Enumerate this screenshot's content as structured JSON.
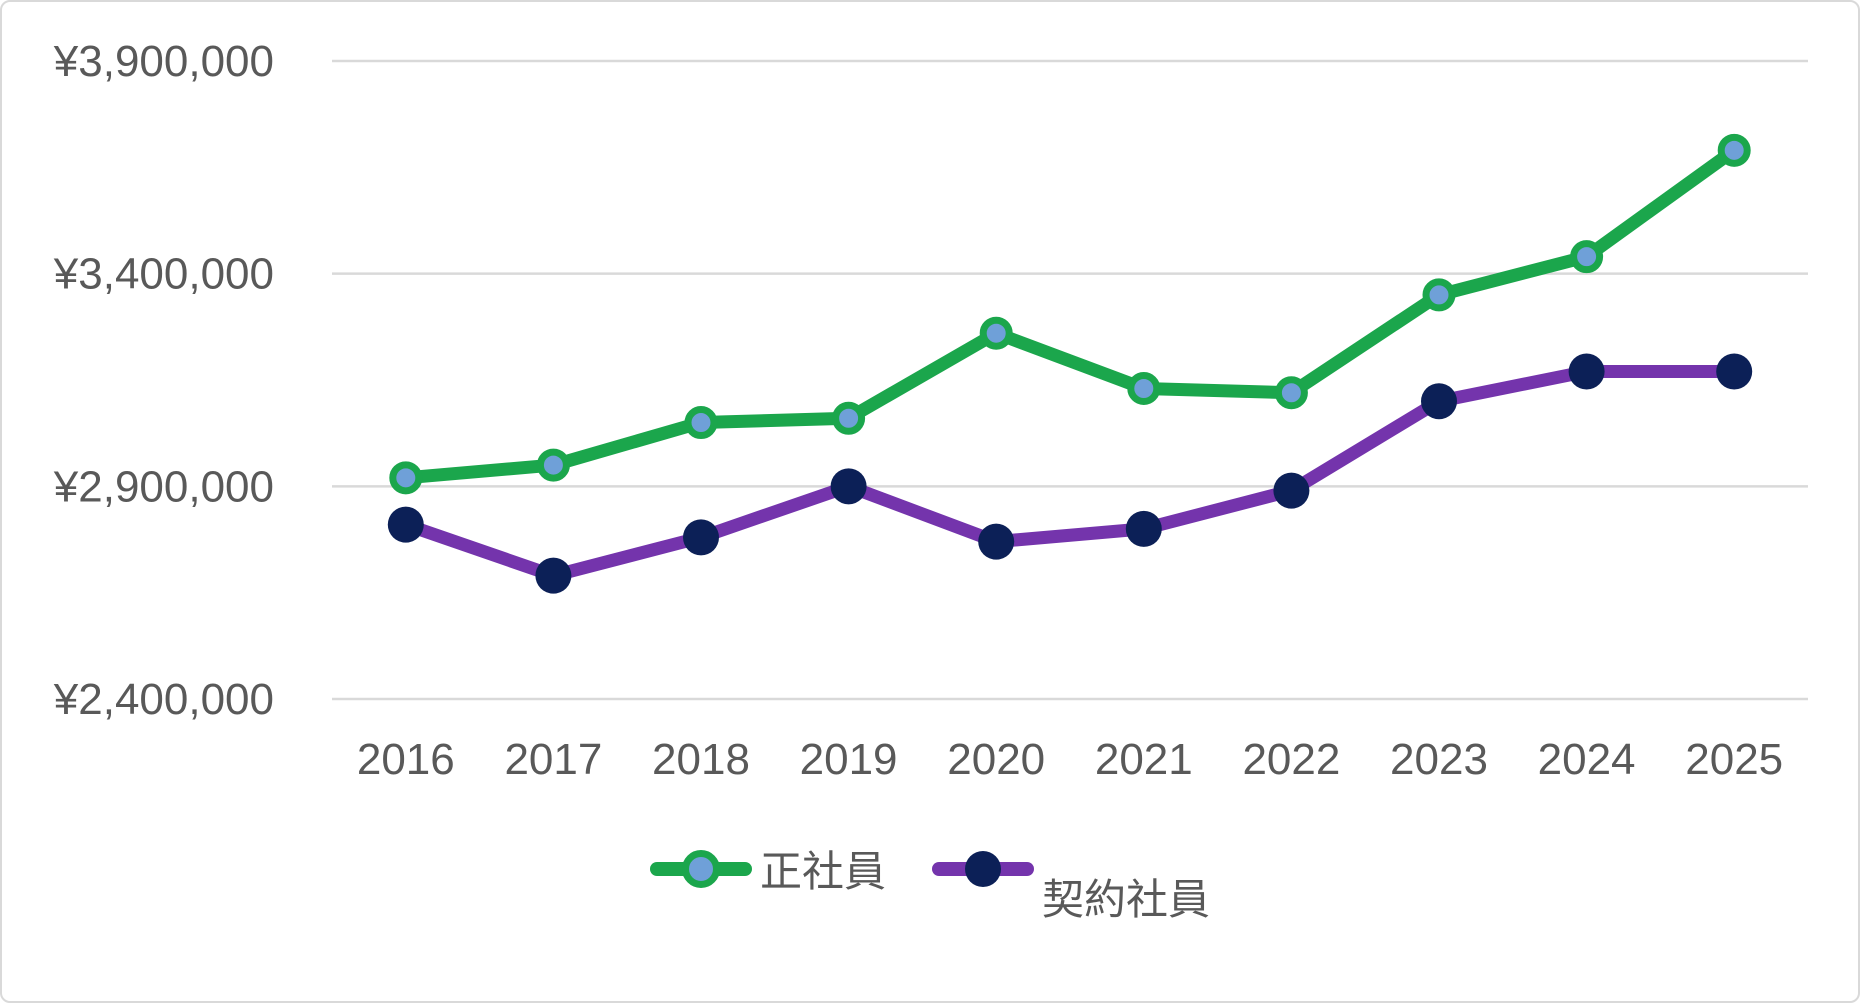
{
  "chart_data": {
    "type": "line",
    "title": "",
    "xlabel": "",
    "ylabel": "",
    "categories": [
      "2016",
      "2017",
      "2018",
      "2019",
      "2020",
      "2021",
      "2022",
      "2023",
      "2024",
      "2025"
    ],
    "series": [
      {
        "name": "正社員",
        "values": [
          2920000,
          2950000,
          3050000,
          3060000,
          3260000,
          3130000,
          3120000,
          3350000,
          3440000,
          3690000
        ],
        "line_color": "#1BA64C",
        "marker_fill": "#6FA0D8",
        "marker_stroke": "#1BA64C"
      },
      {
        "name": "契約社員",
        "values": [
          2810000,
          2690000,
          2780000,
          2900000,
          2770000,
          2800000,
          2890000,
          3100000,
          3170000,
          3170000
        ],
        "line_color": "#7434AC",
        "marker_fill": "#0C2057",
        "marker_stroke": "#0C2057"
      }
    ],
    "y_axis": {
      "min": 2400000,
      "max": 3900000,
      "tick_step": 500000,
      "ticks": [
        {
          "value": 3900000,
          "label": "¥3,900,000"
        },
        {
          "value": 3400000,
          "label": "¥3,400,000"
        },
        {
          "value": 2900000,
          "label": "¥2,900,000"
        },
        {
          "value": 2400000,
          "label": "¥2,400,000"
        }
      ]
    },
    "grid": true,
    "legend_position": "bottom",
    "colors": {
      "gridline": "#D9D9D9",
      "axis_text": "#595959",
      "background": "#FFFFFF",
      "canvas_border": "#D9D9D9"
    }
  }
}
